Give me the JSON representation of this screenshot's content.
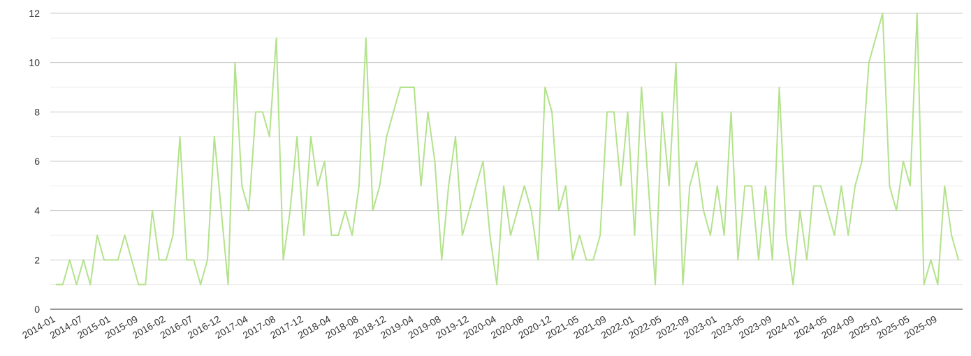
{
  "chart_data": {
    "type": "line",
    "categories": [
      "2014-01",
      null,
      null,
      null,
      "2014-07",
      null,
      null,
      null,
      "2015-01",
      null,
      null,
      null,
      "2015-09",
      null,
      null,
      null,
      "2016-02",
      null,
      null,
      null,
      "2016-07",
      null,
      null,
      null,
      "2016-12",
      null,
      null,
      null,
      "2017-04",
      null,
      null,
      null,
      "2017-08",
      null,
      null,
      null,
      "2017-12",
      null,
      null,
      null,
      "2018-04",
      null,
      null,
      null,
      "2018-08",
      null,
      null,
      null,
      "2018-12",
      null,
      null,
      null,
      "2019-04",
      null,
      null,
      null,
      "2019-08",
      null,
      null,
      null,
      "2019-12",
      null,
      null,
      null,
      "2020-04",
      null,
      null,
      null,
      "2020-08",
      null,
      null,
      null,
      "2020-12",
      null,
      null,
      null,
      "2021-05",
      null,
      null,
      null,
      "2021-09",
      null,
      null,
      null,
      "2022-01",
      null,
      null,
      null,
      "2022-05",
      null,
      null,
      null,
      "2022-09",
      null,
      null,
      null,
      "2023-01",
      null,
      null,
      null,
      "2023-05",
      null,
      null,
      null,
      "2023-09",
      null,
      null,
      null,
      "2024-01",
      null,
      null,
      null,
      "2024-05",
      null,
      null,
      null,
      "2024-09",
      null,
      null,
      null,
      "2025-01",
      null,
      null,
      null,
      "2025-05",
      null,
      null,
      null,
      "2025-09",
      null,
      null,
      null
    ],
    "values": [
      1,
      1,
      2,
      1,
      2,
      1,
      3,
      2,
      2,
      2,
      3,
      2,
      1,
      1,
      4,
      2,
      2,
      3,
      7,
      2,
      2,
      1,
      2,
      7,
      4,
      1,
      10,
      5,
      4,
      8,
      8,
      7,
      11,
      2,
      4,
      7,
      3,
      7,
      5,
      6,
      3,
      3,
      4,
      3,
      5,
      11,
      4,
      5,
      7,
      8,
      9,
      9,
      9,
      5,
      8,
      6,
      2,
      5,
      7,
      3,
      4,
      5,
      6,
      3,
      1,
      5,
      3,
      4,
      5,
      4,
      2,
      9,
      8,
      4,
      5,
      2,
      3,
      2,
      2,
      3,
      8,
      8,
      5,
      8,
      3,
      9,
      5,
      1,
      8,
      5,
      10,
      1,
      5,
      6,
      4,
      3,
      5,
      3,
      8,
      2,
      5,
      5,
      2,
      5,
      2,
      9,
      3,
      1,
      4,
      2,
      5,
      5,
      4,
      3,
      5,
      3,
      5,
      6,
      10,
      11,
      12,
      5,
      4,
      6,
      5,
      12,
      1,
      2,
      1,
      5,
      3,
      2
    ],
    "color": "#b3e28c",
    "ylim": [
      0,
      12
    ],
    "yticks": [
      0,
      2,
      4,
      6,
      8,
      10,
      12
    ],
    "minor_yticks": [
      1,
      3,
      5,
      7,
      9,
      11
    ],
    "grid": true
  }
}
